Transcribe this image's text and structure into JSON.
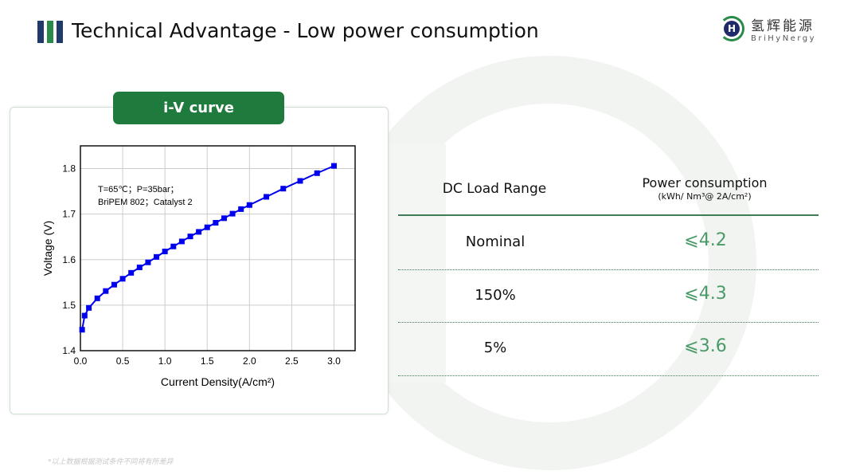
{
  "header": {
    "title": "Technical Advantage - Low power consumption",
    "logo_cn": "氢辉能源",
    "logo_en": "BriHyNergy",
    "logo_mark": "H"
  },
  "card": {
    "label": "i-V curve"
  },
  "table": {
    "col1": "DC Load Range",
    "col2": "Power consumption",
    "col2_unit": "(kWh/ Nm³@ 2A/cm²)",
    "rows": [
      {
        "range": "Nominal",
        "value": "⩽4.2"
      },
      {
        "range": "150%",
        "value": "⩽4.3"
      },
      {
        "range": "5%",
        "value": "⩽3.6"
      }
    ]
  },
  "footnote": "*以上数据根据测试条件不同将有所差异",
  "colors": {
    "accent": "#1f7a3d",
    "series": "#0000ee"
  },
  "chart_data": {
    "type": "line",
    "xlabel": "Current Density(A/cm²)",
    "ylabel": "Voltage (V)",
    "xlim": [
      0,
      3.25
    ],
    "ylim": [
      1.4,
      1.85
    ],
    "grid": true,
    "xticks": [
      "0.0",
      "0.5",
      "1.0",
      "1.5",
      "2.0",
      "2.5",
      "3.0"
    ],
    "yticks": [
      "1.4",
      "1.5",
      "1.6",
      "1.7",
      "1.8"
    ],
    "annotation": [
      "T=65℃；P=35bar；",
      "BriPEM 802；Catalyst 2"
    ],
    "x": [
      0.02,
      0.05,
      0.1,
      0.2,
      0.3,
      0.4,
      0.5,
      0.6,
      0.7,
      0.8,
      0.9,
      1.0,
      1.1,
      1.2,
      1.3,
      1.4,
      1.5,
      1.6,
      1.7,
      1.8,
      1.9,
      2.0,
      2.2,
      2.4,
      2.6,
      2.8,
      3.0
    ],
    "y": [
      1.446,
      1.477,
      1.494,
      1.515,
      1.531,
      1.545,
      1.558,
      1.571,
      1.583,
      1.594,
      1.606,
      1.618,
      1.629,
      1.64,
      1.651,
      1.661,
      1.671,
      1.681,
      1.691,
      1.701,
      1.711,
      1.72,
      1.738,
      1.756,
      1.773,
      1.79,
      1.806
    ]
  }
}
